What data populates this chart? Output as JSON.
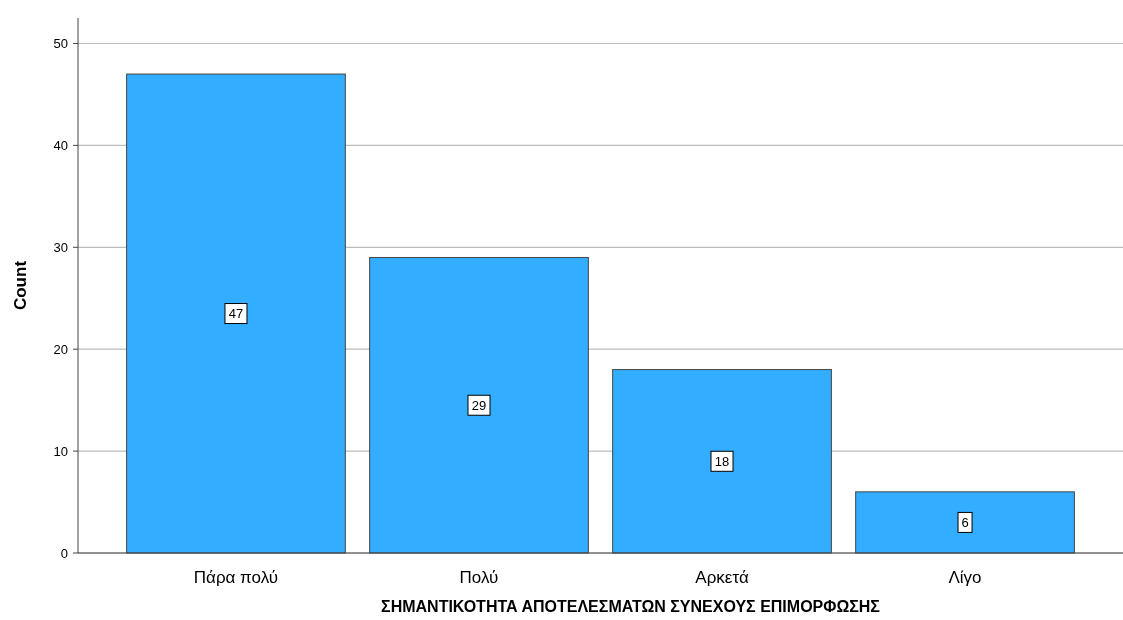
{
  "chart_data": {
    "type": "bar",
    "xlabel": "ΣΗΜΑΝΤΙΚΟΤΗΤΑ ΑΠΟΤΕΛΕΣΜΑΤΩΝ ΣΥΝΕΧΟΥΣ ΕΠΙΜΟΡΦΩΣΗΣ",
    "ylabel": "Count",
    "categories": [
      "Πάρα πολύ",
      "Πολύ",
      "Αρκετά",
      "Λίγο"
    ],
    "values": [
      47,
      29,
      18,
      6
    ],
    "color": "#33adff",
    "ylim": [
      0,
      52.5
    ],
    "yticks": [
      0,
      10,
      20,
      30,
      40,
      50
    ],
    "grid": "y",
    "data_labels": true
  }
}
